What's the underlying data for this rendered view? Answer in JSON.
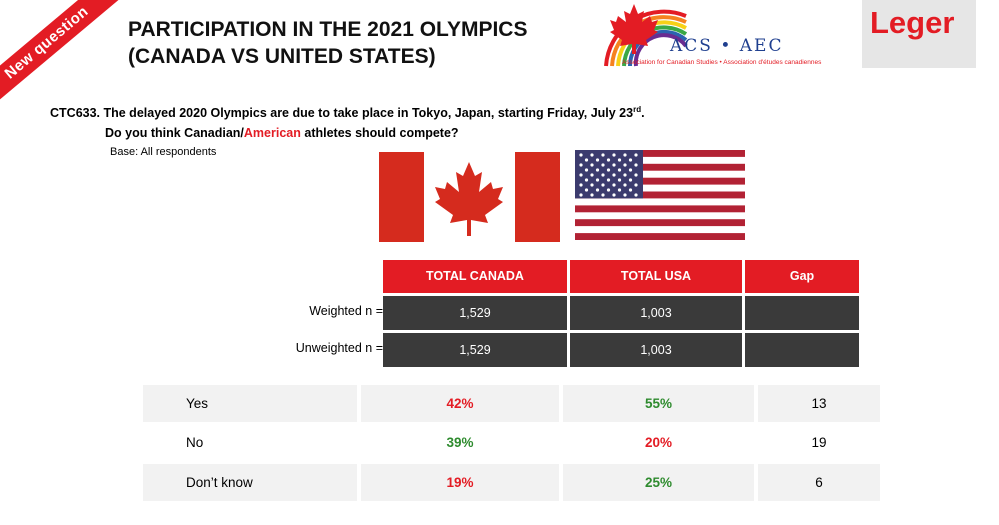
{
  "badge": "New question",
  "title_line1": "PARTICIPATION IN THE 2021 OLYMPICS",
  "title_line2": "(CANADA VS UNITED STATES)",
  "acs_logo_text": "ACS • AEC",
  "acs_logo_sub": "Association for Canadian Studies • Association d'études canadiennes",
  "leger_logo_text": "Leger",
  "question": {
    "line1": "CTC633. The delayed 2020 Olympics are due to take place in Tokyo, Japan, starting Friday, July 23",
    "line1_sup": "rd",
    "line1_end": ".",
    "line2_pre": "Do you think Canadian/",
    "line2_red": "American",
    "line2_post": " athletes should compete?"
  },
  "base": "Base: All respondents",
  "colors": {
    "red": "#e31c24",
    "green": "#2e8b2e",
    "dark": "#3a3a3a",
    "gray": "#f2f2f2"
  },
  "table": {
    "headers": [
      "TOTAL CANADA",
      "TOTAL USA",
      "Gap"
    ],
    "weighted": {
      "label": "Weighted n =",
      "canada": "1,529",
      "usa": "1,003",
      "gap": ""
    },
    "unweighted": {
      "label": "Unweighted n =",
      "canada": "1,529",
      "usa": "1,003",
      "gap": ""
    },
    "rows": [
      {
        "label": "Yes",
        "canada": "42%",
        "usa": "55%",
        "gap": "13"
      },
      {
        "label": "No",
        "canada": "39%",
        "usa": "20%",
        "gap": "19"
      },
      {
        "label": "Don’t know",
        "canada": "19%",
        "usa": "25%",
        "gap": "6"
      }
    ]
  }
}
